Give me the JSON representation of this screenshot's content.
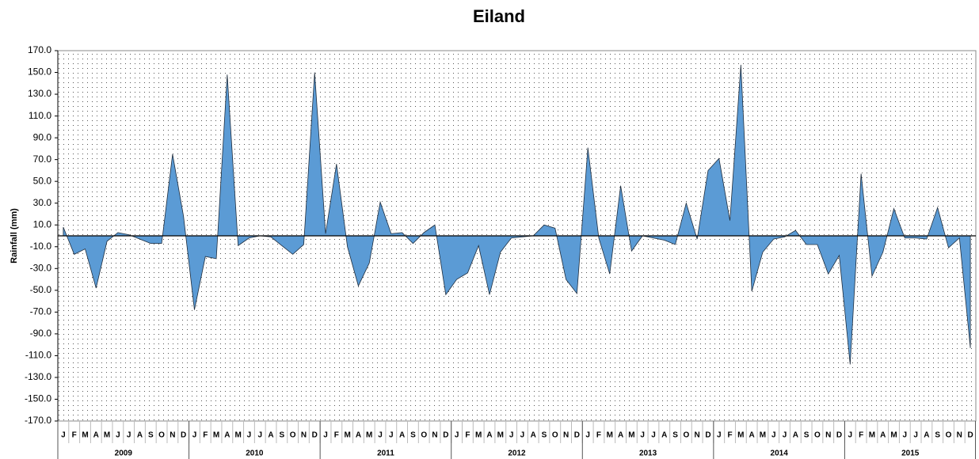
{
  "chart_data": {
    "type": "area",
    "title": "Eiland",
    "y_label": "Rainfall (mm)",
    "categories": [
      "J",
      "F",
      "M",
      "A",
      "M",
      "J",
      "J",
      "A",
      "S",
      "O",
      "N",
      "D",
      "J",
      "F",
      "M",
      "A",
      "M",
      "J",
      "J",
      "A",
      "S",
      "O",
      "N",
      "D",
      "J",
      "F",
      "M",
      "A",
      "M",
      "J",
      "J",
      "A",
      "S",
      "O",
      "N",
      "D",
      "J",
      "F",
      "M",
      "A",
      "M",
      "J",
      "J",
      "A",
      "S",
      "O",
      "N",
      "D",
      "J",
      "F",
      "M",
      "A",
      "M",
      "J",
      "J",
      "A",
      "S",
      "O",
      "N",
      "D",
      "J",
      "F",
      "M",
      "A",
      "M",
      "J",
      "J",
      "A",
      "S",
      "O",
      "N",
      "D",
      "J",
      "F",
      "M",
      "A",
      "M",
      "J",
      "J",
      "A",
      "S",
      "O",
      "N",
      "D"
    ],
    "groups": [
      "2009",
      "2010",
      "2011",
      "2012",
      "2013",
      "2014",
      "2015"
    ],
    "series": [
      {
        "name": "Rainfall",
        "color": "#5b9bd5",
        "values": [
          8,
          -17,
          -12,
          -48,
          -5,
          3,
          1,
          -3,
          -7,
          -7,
          75,
          18,
          -68,
          -19,
          -21,
          148,
          -9,
          -2,
          0,
          -1,
          -9,
          -17,
          -8,
          150,
          2,
          66,
          -10,
          -46,
          -25,
          31,
          2,
          3,
          -7,
          3,
          10,
          -54,
          -40,
          -34,
          -9,
          -54,
          -15,
          -2,
          -1,
          0,
          10,
          7,
          -40,
          -53,
          81,
          -2,
          -35,
          46,
          -14,
          0,
          -2,
          -4,
          -8,
          30,
          -3,
          60,
          71,
          14,
          157,
          -51,
          -15,
          -3,
          -1,
          5,
          -8,
          -8,
          -35,
          -18,
          -118,
          57,
          -37,
          -15,
          25,
          -2,
          -2,
          -3,
          26,
          -11,
          -2,
          -103
        ]
      }
    ],
    "ylim": [
      -170,
      170
    ],
    "yticks": [
      {
        "value": -170,
        "label": "-170.0"
      },
      {
        "value": -150,
        "label": "-150.0"
      },
      {
        "value": -130,
        "label": "-130.0"
      },
      {
        "value": -110,
        "label": "-110.0"
      },
      {
        "value": -90,
        "label": "-90.0"
      },
      {
        "value": -70,
        "label": "-70.0"
      },
      {
        "value": -50,
        "label": "-50.0"
      },
      {
        "value": -30,
        "label": "-30.0"
      },
      {
        "value": -10,
        "label": "-10.0"
      },
      {
        "value": 10,
        "label": "10.0"
      },
      {
        "value": 30,
        "label": "30.0"
      },
      {
        "value": 50,
        "label": "50.0"
      },
      {
        "value": 70,
        "label": "70.0"
      },
      {
        "value": 90,
        "label": "90.0"
      },
      {
        "value": 110,
        "label": "110.0"
      },
      {
        "value": 130,
        "label": "130.0"
      },
      {
        "value": 150,
        "label": "150.0"
      },
      {
        "value": 170,
        "label": "170.0"
      }
    ],
    "grid": false
  }
}
